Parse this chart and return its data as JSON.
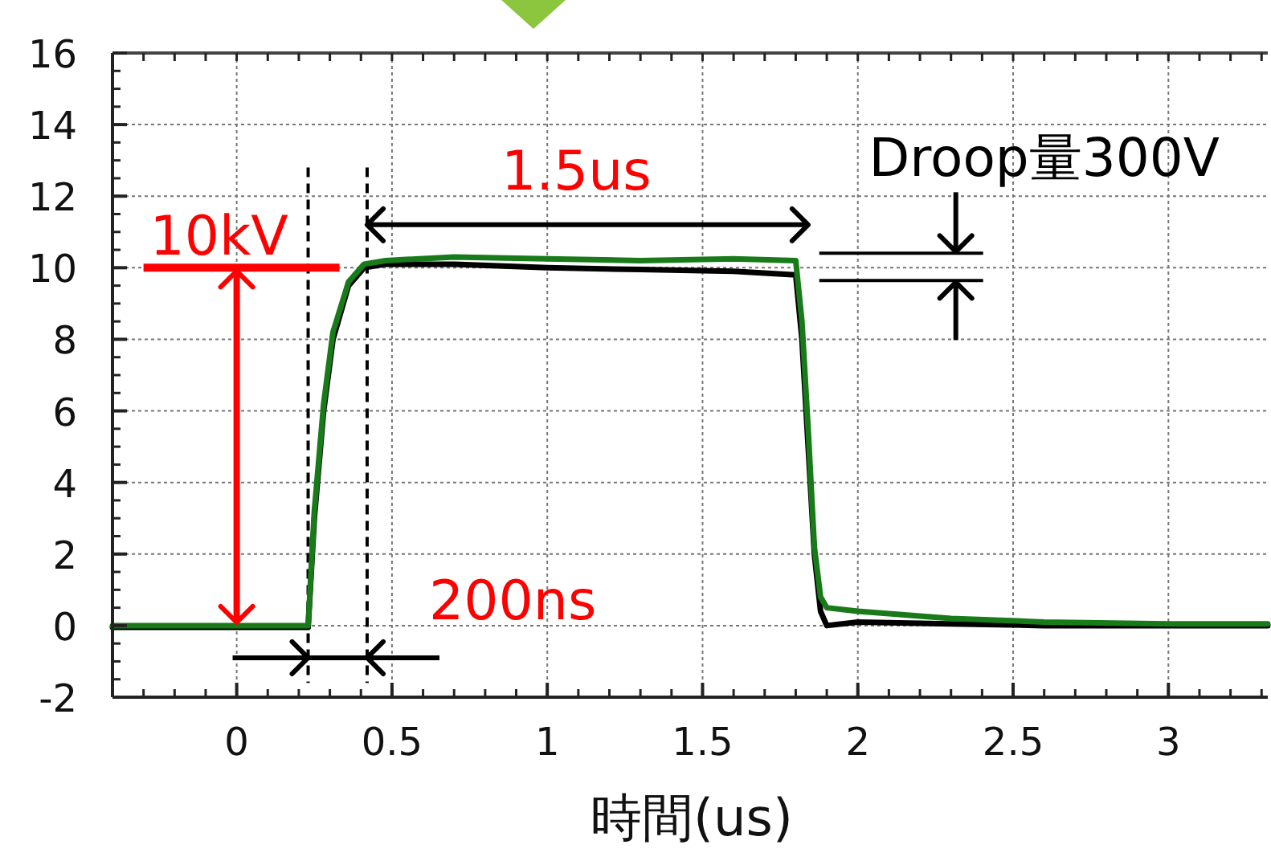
{
  "chart_data": {
    "type": "line",
    "xlabel": "時間(us)",
    "x": [
      -0.4,
      0.0,
      0.23,
      0.25,
      0.28,
      0.31,
      0.36,
      0.41,
      0.48,
      0.7,
      1.0,
      1.3,
      1.6,
      1.8,
      1.82,
      1.84,
      1.86,
      1.88,
      1.9,
      2.0,
      2.3,
      2.6,
      3.0,
      3.32
    ],
    "series": [
      {
        "color": "#000000",
        "values": [
          -0.05,
          -0.05,
          -0.05,
          3,
          6,
          8,
          9.5,
          10,
          10.1,
          10.1,
          10.0,
          9.95,
          9.9,
          9.8,
          8,
          5,
          2,
          0.4,
          0,
          0.1,
          0.05,
          0,
          0,
          0
        ]
      },
      {
        "color": "#187a18",
        "values": [
          0,
          0,
          0,
          3.2,
          6.2,
          8.2,
          9.6,
          10.1,
          10.2,
          10.3,
          10.25,
          10.2,
          10.25,
          10.2,
          8.5,
          5.5,
          2.2,
          0.8,
          0.5,
          0.4,
          0.2,
          0.1,
          0.05,
          0.05
        ]
      }
    ],
    "xlim": [
      -0.4,
      3.32
    ],
    "xticks": [
      0,
      0.5,
      1,
      1.5,
      2,
      2.5,
      3
    ],
    "ylim": [
      -2,
      16
    ],
    "yticks": [
      -2,
      0,
      2,
      4,
      6,
      8,
      10,
      12,
      14,
      16
    ],
    "grid": true,
    "marker": "none",
    "line_style": "solid",
    "ref_lines": [
      {
        "axis": "x",
        "value": 0.23,
        "line_style": "dashed",
        "color": "#000000"
      },
      {
        "axis": "x",
        "value": 0.42,
        "line_style": "dashed",
        "color": "#000000"
      }
    ],
    "annotations": [
      {
        "text": "10kV",
        "x": 0,
        "y": 0
      },
      "1.5us",
      "200ns",
      "Droop量300V"
    ]
  }
}
